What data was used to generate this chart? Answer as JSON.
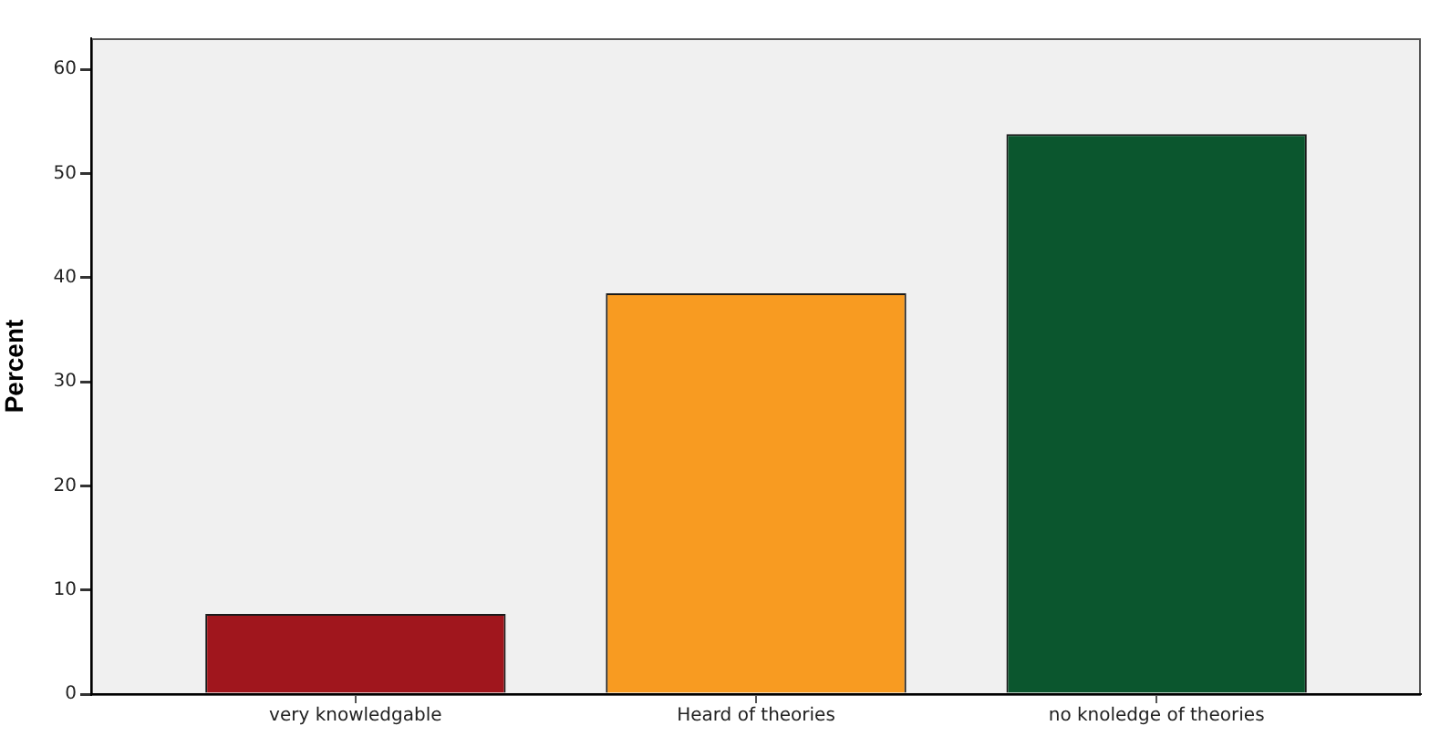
{
  "chart_data": {
    "type": "bar",
    "ylabel": "Percent",
    "categories": [
      "very knowledgable",
      "Heard of theories",
      "no knoledge of theories"
    ],
    "values": [
      7.7,
      38.5,
      53.8
    ],
    "colors": [
      "#a0161d",
      "#f89b21",
      "#0b562e"
    ],
    "ylim": [
      0,
      63
    ],
    "yticks": [
      0,
      10,
      20,
      30,
      40,
      50,
      60
    ]
  }
}
